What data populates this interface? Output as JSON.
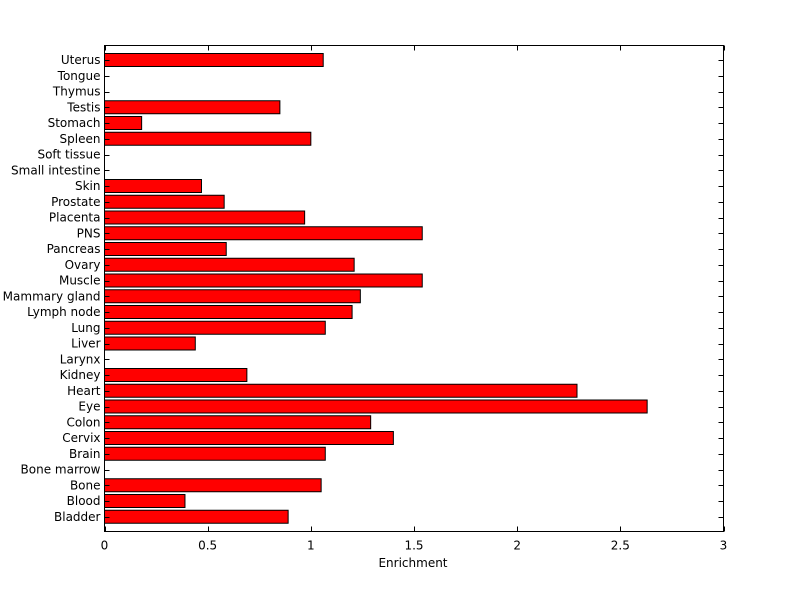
{
  "chart_data": {
    "type": "bar",
    "orientation": "horizontal",
    "title": "",
    "xlabel": "Enrichment",
    "ylabel": "",
    "xlim": [
      0,
      3
    ],
    "x_ticks": [
      "0",
      "0.5",
      "1",
      "1.5",
      "2",
      "2.5",
      "3"
    ],
    "x_tick_values": [
      0,
      0.5,
      1,
      1.5,
      2,
      2.5,
      3
    ],
    "grid": false,
    "legend": "none",
    "bar_color": "#ff0000",
    "categories": [
      "Uterus",
      "Tongue",
      "Thymus",
      "Testis",
      "Stomach",
      "Spleen",
      "Soft tissue",
      "Small intestine",
      "Skin",
      "Prostate",
      "Placenta",
      "PNS",
      "Pancreas",
      "Ovary",
      "Muscle",
      "Mammary gland",
      "Lymph node",
      "Lung",
      "Liver",
      "Larynx",
      "Kidney",
      "Heart",
      "Eye",
      "Colon",
      "Cervix",
      "Brain",
      "Bone marrow",
      "Bone",
      "Blood",
      "Bladder"
    ],
    "values": [
      1.06,
      0,
      0,
      0.85,
      0.18,
      1.0,
      0,
      0,
      0.47,
      0.58,
      0.97,
      1.54,
      0.59,
      1.21,
      1.54,
      1.24,
      1.2,
      1.07,
      0.44,
      0,
      0.69,
      2.29,
      2.63,
      1.29,
      1.4,
      1.07,
      0,
      1.05,
      0.39,
      0.89
    ]
  }
}
